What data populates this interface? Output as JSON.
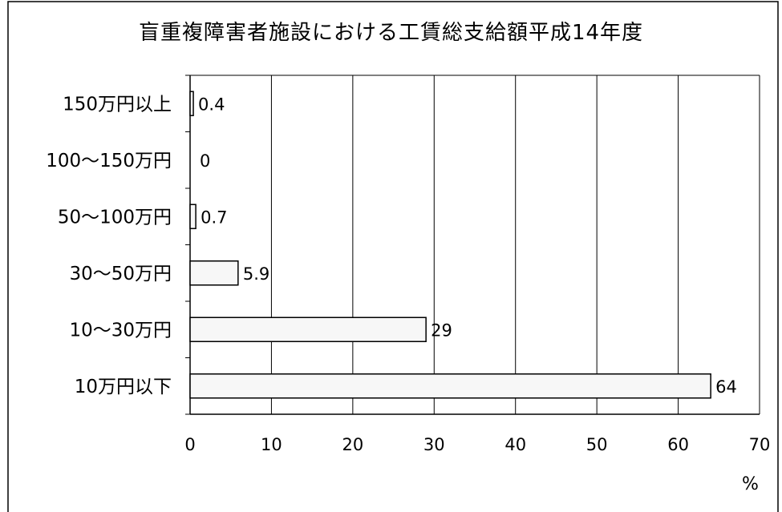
{
  "chart_data": {
    "type": "bar",
    "orientation": "horizontal",
    "title": "盲重複障害者施設における工賃総支給額平成14年度",
    "categories": [
      "150万円以上",
      "100〜150万円",
      "50〜100万円",
      "30〜50万円",
      "10〜30万円",
      "10万円以下"
    ],
    "values": [
      0.4,
      0,
      0.7,
      5.9,
      29,
      64
    ],
    "value_labels": [
      "0.4",
      "0",
      "0.7",
      "5.9",
      "29",
      "64"
    ],
    "xlim": [
      0,
      70
    ],
    "x_ticks": [
      "0",
      "10",
      "20",
      "30",
      "40",
      "50",
      "60",
      "70"
    ],
    "xlabel": "%",
    "ylabel": "",
    "grid": "vertical",
    "legend": "none",
    "colors": {
      "bar_fill": "#f7f7f7",
      "bar_stroke": "#000000",
      "grid": "#000000"
    }
  }
}
